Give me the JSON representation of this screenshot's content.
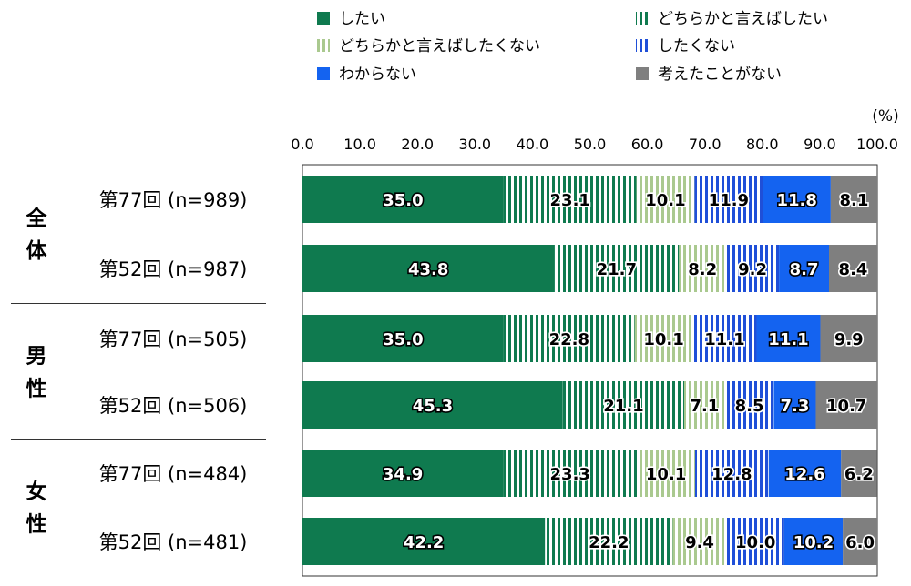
{
  "chart_data": {
    "type": "bar",
    "orientation": "horizontal",
    "stacked": true,
    "xlim": [
      0,
      100
    ],
    "x_ticks": [
      "0.0",
      "10.0",
      "20.0",
      "30.0",
      "40.0",
      "50.0",
      "60.0",
      "70.0",
      "80.0",
      "90.0",
      "100.0"
    ],
    "unit_label": "(%)",
    "legend_placement": "top",
    "groups": [
      {
        "label": "全\n体",
        "rows": [
          0,
          1
        ]
      },
      {
        "label": "男\n性",
        "rows": [
          2,
          3
        ]
      },
      {
        "label": "女\n性",
        "rows": [
          4,
          5
        ]
      }
    ],
    "categories": [
      "第77回 (n=989)",
      "第52回 (n=987)",
      "第77回 (n=505)",
      "第52回 (n=506)",
      "第77回 (n=484)",
      "第52回 (n=481)"
    ],
    "series": [
      {
        "name": "したい",
        "color": "#0f7a4f",
        "pattern": "solid",
        "values": [
          35.0,
          43.8,
          35.0,
          45.3,
          34.9,
          42.2
        ]
      },
      {
        "name": "どちらかと言えばしたい",
        "color": "#0f7a4f",
        "pattern": "stripes",
        "values": [
          23.1,
          21.7,
          22.8,
          21.1,
          23.3,
          22.2
        ]
      },
      {
        "name": "どちらかと言えばしたくない",
        "color": "#aac98f",
        "pattern": "stripes",
        "values": [
          10.1,
          8.2,
          10.1,
          7.1,
          10.1,
          9.4
        ]
      },
      {
        "name": "したくない",
        "color": "#1f4fd8",
        "pattern": "stripes",
        "values": [
          11.9,
          9.2,
          11.1,
          8.5,
          12.8,
          10.0
        ]
      },
      {
        "name": "わからない",
        "color": "#1463f0",
        "pattern": "solid",
        "values": [
          11.8,
          8.7,
          11.1,
          7.3,
          12.6,
          10.2
        ]
      },
      {
        "name": "考えたことがない",
        "color": "#7f7f7f",
        "pattern": "solid",
        "values": [
          8.1,
          8.4,
          9.9,
          10.7,
          6.2,
          6.0
        ]
      }
    ]
  }
}
